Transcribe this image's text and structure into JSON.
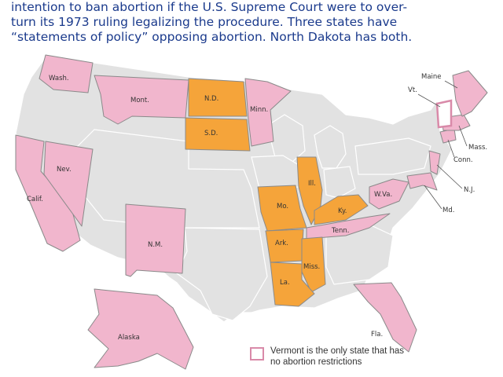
{
  "intro_lines": [
    "intention to ban abortion if the U.S. Supreme Court were to over-",
    "turn its 1973 ruling legalizing the procedure. Three states have",
    "“statements of policy” opposing abortion. North Dakota has both."
  ],
  "state_labels": {
    "wa": "Wash.",
    "mt": "Mont.",
    "nd": "N.D.",
    "sd": "S.D.",
    "mn": "Minn.",
    "ca": "Calif.",
    "nv": "Nev.",
    "nm": "N.M.",
    "ak": "Alaska",
    "mo": "Mo.",
    "il": "Ill.",
    "ky": "Ky.",
    "ar": "Ark.",
    "tn": "Tenn.",
    "ms": "Miss.",
    "la": "La.",
    "fl": "Fla.",
    "wv": "W.Va.",
    "me": "Maine",
    "vt": "Vt.",
    "ma": "Mass.",
    "ct": "Conn.",
    "nj": "N.J.",
    "md": "Md."
  },
  "colors": {
    "restricted": "#f1b6cd",
    "ban_if_overturned": "#f5a43a",
    "other": "#e2e2e2",
    "vermont_outline": "#d98aa9"
  },
  "legend": {
    "line1": "Vermont is the only state that has",
    "line2": "no abortion restrictions"
  }
}
